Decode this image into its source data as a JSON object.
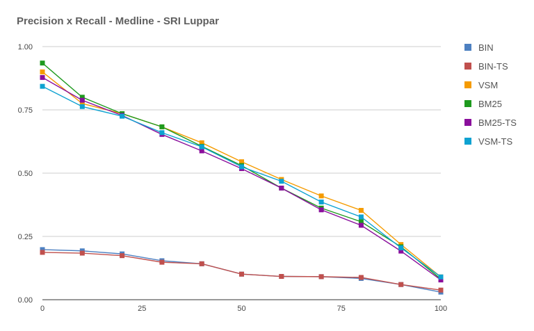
{
  "chart_data": {
    "type": "line",
    "title": "Precision x Recall - Medline - SRI Luppar",
    "xlabel": "",
    "ylabel": "",
    "xlim": [
      0,
      100
    ],
    "ylim": [
      0,
      1
    ],
    "x": [
      0,
      10,
      20,
      30,
      40,
      50,
      60,
      70,
      80,
      90,
      100
    ],
    "x_ticks": [
      "0",
      "25",
      "50",
      "75",
      "100"
    ],
    "y_ticks": [
      "0.00",
      "0.25",
      "0.50",
      "0.75",
      "1.00"
    ],
    "grid": true,
    "legend_position": "right",
    "series": [
      {
        "name": "BIN",
        "color": "#4d80c1",
        "values": [
          0.198,
          0.193,
          0.181,
          0.154,
          0.142,
          0.101,
          0.092,
          0.091,
          0.084,
          0.06,
          0.03
        ]
      },
      {
        "name": "BIN-TS",
        "color": "#c0504d",
        "values": [
          0.187,
          0.184,
          0.174,
          0.148,
          0.142,
          0.101,
          0.092,
          0.091,
          0.088,
          0.06,
          0.038
        ]
      },
      {
        "name": "VSM",
        "color": "#f59b00",
        "values": [
          0.9,
          0.775,
          0.735,
          0.683,
          0.62,
          0.545,
          0.475,
          0.41,
          0.353,
          0.218,
          0.09
        ]
      },
      {
        "name": "BM25",
        "color": "#1e9a1e",
        "values": [
          0.935,
          0.8,
          0.735,
          0.683,
          0.606,
          0.53,
          0.441,
          0.362,
          0.308,
          0.209,
          0.082
        ]
      },
      {
        "name": "BM25-TS",
        "color": "#8a0f9c",
        "values": [
          0.878,
          0.788,
          0.728,
          0.653,
          0.588,
          0.518,
          0.441,
          0.355,
          0.294,
          0.192,
          0.078
        ]
      },
      {
        "name": "VSM-TS",
        "color": "#0ea2d1",
        "values": [
          0.843,
          0.763,
          0.725,
          0.66,
          0.604,
          0.525,
          0.468,
          0.386,
          0.327,
          0.205,
          0.09
        ]
      }
    ]
  }
}
